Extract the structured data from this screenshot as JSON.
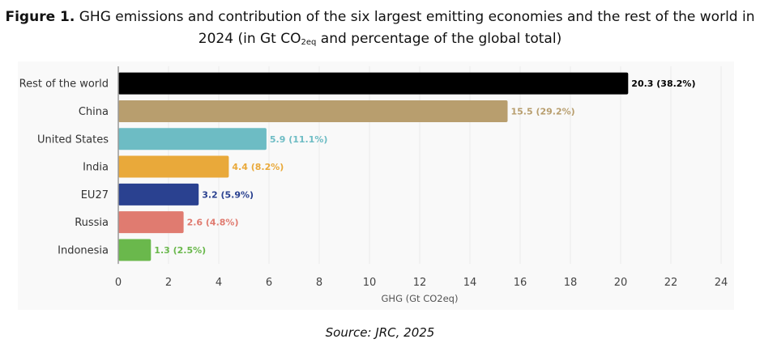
{
  "title": {
    "bold": "Figure 1.",
    "line1_rest": " GHG emissions and contribution of the six largest emitting economies and the rest of the world in",
    "line2_pre": "2024 (in Gt CO",
    "line2_sub": "2eq",
    "line2_post": " and percentage of the global total)"
  },
  "source": "Source: JRC, 2025",
  "chart_data": {
    "type": "bar",
    "orientation": "horizontal",
    "title": "GHG emissions and contribution of the six largest emitting economies and the rest of the world in 2024 (in Gt CO2eq and percentage of the global total)",
    "xlabel": "GHG (Gt CO2eq)",
    "ylabel": "",
    "xlim": [
      0,
      24
    ],
    "xticks": [
      0,
      2,
      4,
      6,
      8,
      10,
      12,
      14,
      16,
      18,
      20,
      22,
      24
    ],
    "grid": true,
    "categories": [
      "Rest of the world",
      "China",
      "United States",
      "India",
      "EU27",
      "Russia",
      "Indonesia"
    ],
    "values": [
      20.3,
      15.5,
      5.9,
      4.4,
      3.2,
      2.6,
      1.3
    ],
    "percentages": [
      38.2,
      29.2,
      11.1,
      8.2,
      5.9,
      4.8,
      2.5
    ],
    "data_labels": [
      "20.3 (38.2%)",
      "15.5 (29.2%)",
      "5.9 (11.1%)",
      "4.4 (8.2%)",
      "3.2 (5.9%)",
      "2.6 (4.8%)",
      "1.3 (2.5%)"
    ],
    "colors": [
      "#000000",
      "#b89e6e",
      "#6dbcc4",
      "#e9a93a",
      "#2a4190",
      "#e07b70",
      "#6ab84c"
    ],
    "label_colors": [
      "#000000",
      "#b89e6e",
      "#6dbcc4",
      "#e9a93a",
      "#2a4190",
      "#e07b70",
      "#6ab84c"
    ]
  }
}
